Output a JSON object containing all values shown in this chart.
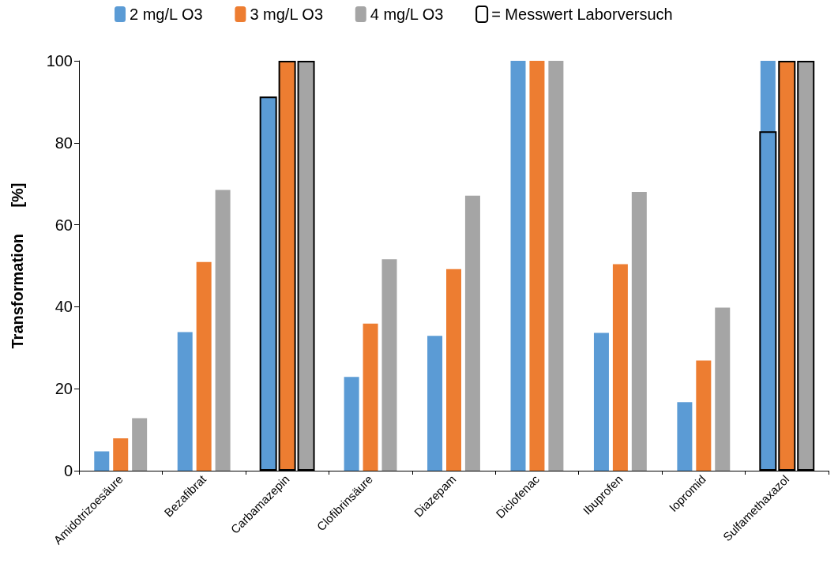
{
  "chart_data": {
    "type": "bar",
    "ylabel": "Transformation      [%]",
    "categories": [
      "Amidotrizoesäure",
      "Bezafibrat",
      "Carbamazepin",
      "Clofibrinsäure",
      "Diazepam",
      "Diclofenac",
      "Ibuprofen",
      "Iopromid",
      "Sulfamethaxazol"
    ],
    "series": [
      {
        "name": "2 mg/L O3",
        "color": "#5b9bd5",
        "values": [
          4.7,
          33.8,
          null,
          22.9,
          32.9,
          100,
          33.6,
          16.7,
          100
        ]
      },
      {
        "name": "3 mg/L O3",
        "color": "#ed7d31",
        "values": [
          7.9,
          50.9,
          null,
          35.9,
          49.2,
          100,
          50.4,
          26.9,
          null
        ]
      },
      {
        "name": "4 mg/L O3",
        "color": "#a5a5a5",
        "values": [
          12.8,
          68.5,
          null,
          51.6,
          67.1,
          100,
          68,
          39.8,
          null
        ]
      },
      {
        "name": "= Messwert Laborversuch",
        "color": "#000000",
        "line_style": "solid",
        "colors": [
          null,
          null,
          "#5b9bd5",
          null,
          null,
          null,
          null,
          null,
          "#5b9bd5"
        ],
        "values": [
          null,
          null,
          91.3,
          null,
          null,
          null,
          null,
          null,
          82.8
        ]
      },
      {
        "color": "#000000",
        "line_style": "solid",
        "colors": [
          null,
          null,
          "#ed7d31",
          null,
          null,
          null,
          null,
          null,
          "#ed7d31"
        ],
        "values": [
          null,
          null,
          100,
          null,
          null,
          null,
          null,
          null,
          100
        ]
      },
      {
        "color": "#000000",
        "line_style": "solid",
        "colors": [
          null,
          null,
          "#a5a5a5",
          null,
          null,
          null,
          null,
          null,
          "#a5a5a5"
        ],
        "values": [
          null,
          null,
          100,
          null,
          null,
          null,
          null,
          null,
          100
        ]
      }
    ],
    "ylim": [
      0,
      100
    ],
    "yticks": [
      0,
      20,
      40,
      60,
      80,
      100
    ],
    "grid": false,
    "legend": "top"
  }
}
